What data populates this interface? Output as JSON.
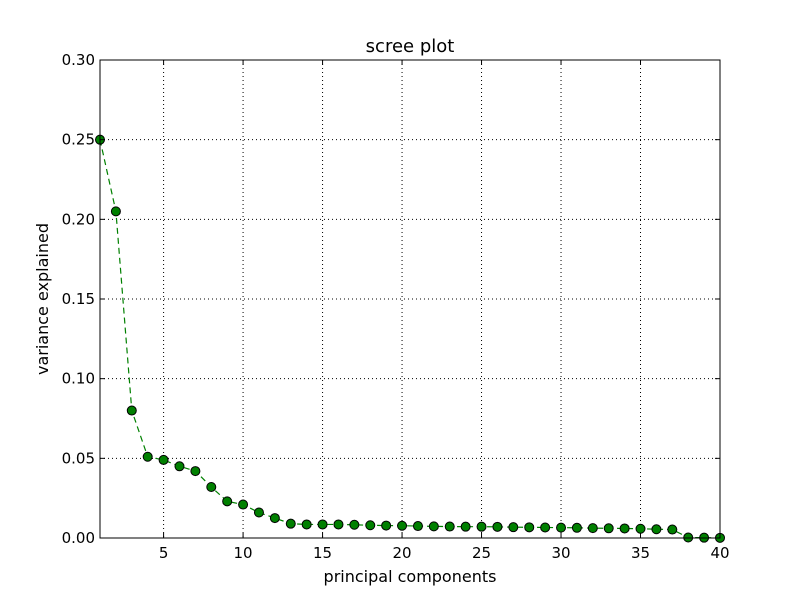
{
  "chart_data": {
    "type": "line",
    "title": "scree plot",
    "xlabel": "principal components",
    "ylabel": "variance explained",
    "xlim": [
      1,
      40
    ],
    "ylim": [
      0,
      0.3
    ],
    "xticks": [
      5,
      10,
      15,
      20,
      25,
      30,
      35,
      40
    ],
    "yticks": [
      0.0,
      0.05,
      0.1,
      0.15,
      0.2,
      0.25,
      0.3
    ],
    "ytick_labels": [
      "0.00",
      "0.05",
      "0.10",
      "0.15",
      "0.20",
      "0.25",
      "0.30"
    ],
    "grid": true,
    "line_style": "dashed",
    "marker": "circle",
    "color": "#008000",
    "x": [
      1,
      2,
      3,
      4,
      5,
      6,
      7,
      8,
      9,
      10,
      11,
      12,
      13,
      14,
      15,
      16,
      17,
      18,
      19,
      20,
      21,
      22,
      23,
      24,
      25,
      26,
      27,
      28,
      29,
      30,
      31,
      32,
      33,
      34,
      35,
      36,
      37,
      38,
      39,
      40
    ],
    "values": [
      0.25,
      0.205,
      0.08,
      0.051,
      0.049,
      0.045,
      0.042,
      0.032,
      0.023,
      0.021,
      0.016,
      0.0125,
      0.009,
      0.0085,
      0.0085,
      0.0085,
      0.0083,
      0.008,
      0.0078,
      0.0077,
      0.0075,
      0.0073,
      0.0072,
      0.0071,
      0.0071,
      0.007,
      0.0068,
      0.0067,
      0.0066,
      0.0065,
      0.0064,
      0.0062,
      0.0061,
      0.006,
      0.0058,
      0.0055,
      0.0053,
      0.0003,
      0.0002,
      0.0001
    ]
  }
}
